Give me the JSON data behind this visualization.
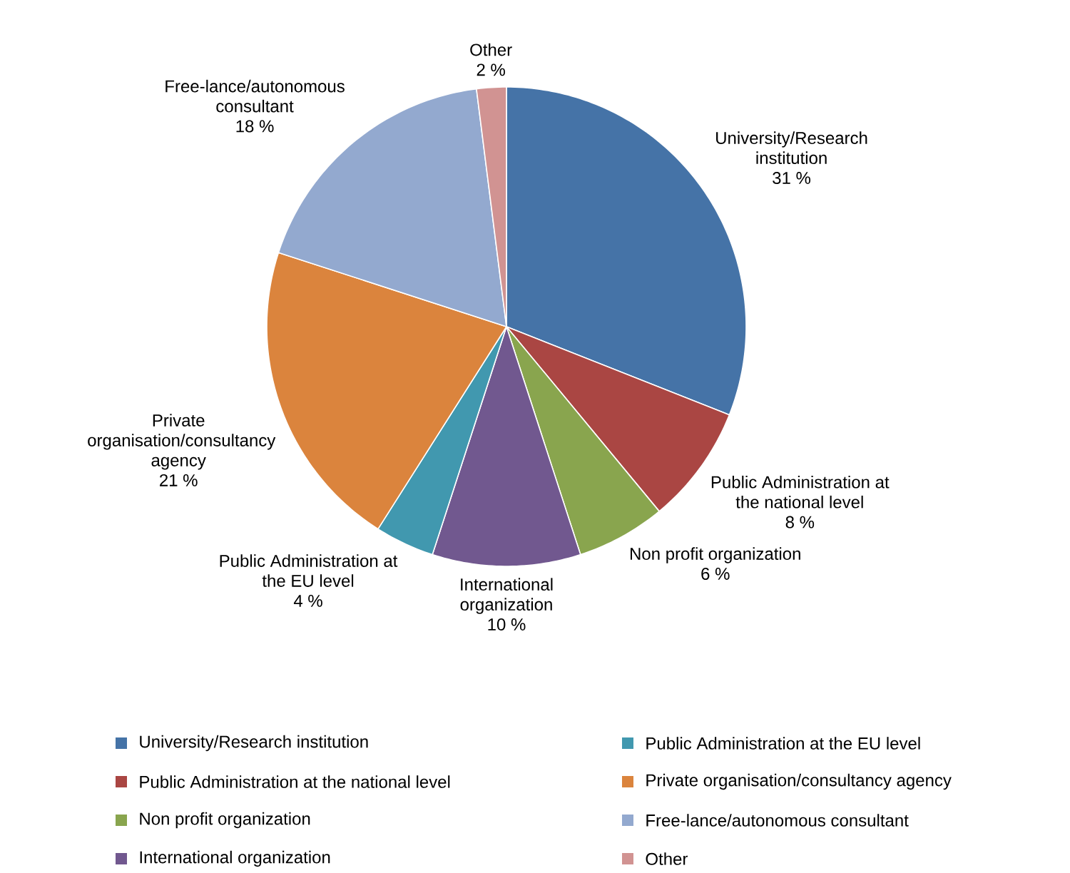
{
  "chart_data": {
    "type": "pie",
    "categories": [
      "University/Research institution",
      "Public Administration at the national level",
      "Non profit organization",
      "International organization",
      "Public Administration at the EU level",
      "Private organisation/consultancy agency",
      "Free-lance/autonomous consultant",
      "Other"
    ],
    "values": [
      31,
      8,
      6,
      10,
      4,
      21,
      18,
      2
    ],
    "value_labels": [
      "31 %",
      "8 %",
      "6 %",
      "10 %",
      "4 %",
      "21 %",
      "18 %",
      "2 %"
    ],
    "colors": [
      "#4573a7",
      "#aa4643",
      "#89a54e",
      "#71588f",
      "#4198af",
      "#db843d",
      "#93a9cf",
      "#d19392"
    ],
    "legend": "bottom"
  }
}
